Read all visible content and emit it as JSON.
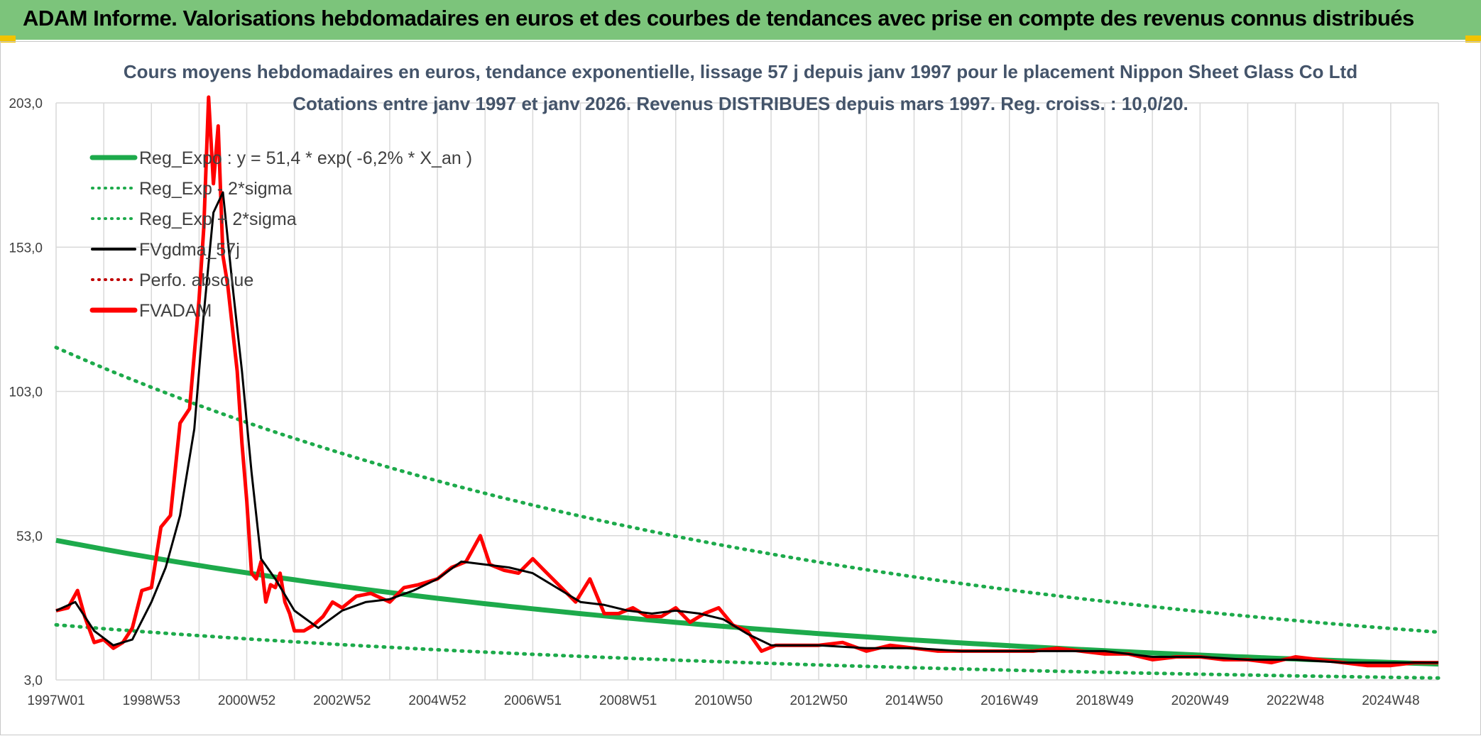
{
  "header": {
    "title": "ADAM Informe. Valorisations hebdomadaires en euros et des courbes de tendances avec prise en compte des revenus connus distribués"
  },
  "colors": {
    "banner": "#7cc47b",
    "reg": "#1daa4b",
    "gdma": "#000000",
    "adam": "#ff0000",
    "perfo": "#c00000",
    "grid": "#d9d9d9"
  },
  "chart_data": {
    "type": "line",
    "title": "Cours moyens hebdomadaires en euros, tendance exponentielle, lissage 57 j depuis janv 1997 pour le placement Nippon Sheet Glass Co Ltd",
    "subtitle": "Cotations entre janv 1997 et janv 2026. Revenus DISTRIBUES depuis mars 1997. Reg. croiss. : 10,0/20.",
    "xlabel": "",
    "ylabel": "",
    "xlim": [
      1997.0,
      2026.0
    ],
    "ylim": [
      3.0,
      203.0
    ],
    "y_ticks": [
      "3,0",
      "53,0",
      "103,0",
      "153,0",
      "203,0"
    ],
    "y_tick_values": [
      3,
      53,
      103,
      153,
      203
    ],
    "x_ticks": [
      "1997W01",
      "1998W53",
      "2000W52",
      "2002W52",
      "2004W52",
      "2006W51",
      "2008W51",
      "2010W50",
      "2012W50",
      "2014W50",
      "2016W49",
      "2018W49",
      "2020W49",
      "2022W48",
      "2024W48"
    ],
    "x_tick_values": [
      1997.0,
      1999.0,
      2001.0,
      2003.0,
      2005.0,
      2007.0,
      2009.0,
      2011.0,
      2013.0,
      2015.0,
      2017.0,
      2019.0,
      2021.0,
      2023.0,
      2025.0
    ],
    "legend": [
      {
        "name": "Reg_Expo : y = 51,4 * exp( -6,2% *  X_an )",
        "style": "solid-thick",
        "color": "#1daa4b"
      },
      {
        "name": "Reg_Exp - 2*sigma",
        "style": "dotted",
        "color": "#1daa4b"
      },
      {
        "name": "Reg_Exp + 2*sigma",
        "style": "dotted",
        "color": "#1daa4b"
      },
      {
        "name": "FVgdma_57j",
        "style": "solid",
        "color": "#000000"
      },
      {
        "name": "Perfo. absolue",
        "style": "dotted",
        "color": "#c00000"
      },
      {
        "name": "FVADAM",
        "style": "solid-thick",
        "color": "#ff0000"
      }
    ],
    "legend_position": "top-left",
    "regression": {
      "a": 51.4,
      "rate": -0.062,
      "lower_sigma_factor": 0.43,
      "upper_sigma_factor": 2.3
    },
    "series": [
      {
        "name": "FVADAM",
        "x": [
          1997.0,
          1997.25,
          1997.45,
          1997.6,
          1997.8,
          1998.0,
          1998.2,
          1998.4,
          1998.6,
          1998.8,
          1999.0,
          1999.2,
          1999.4,
          1999.6,
          1999.8,
          2000.0,
          2000.1,
          2000.2,
          2000.3,
          2000.4,
          2000.5,
          2000.6,
          2000.7,
          2000.8,
          2000.9,
          2001.0,
          2001.1,
          2001.2,
          2001.3,
          2001.4,
          2001.5,
          2001.6,
          2001.7,
          2001.8,
          2001.9,
          2002.0,
          2002.2,
          2002.4,
          2002.6,
          2002.8,
          2003.0,
          2003.3,
          2003.6,
          2004.0,
          2004.3,
          2004.6,
          2005.0,
          2005.3,
          2005.6,
          2005.9,
          2006.1,
          2006.4,
          2006.7,
          2007.0,
          2007.3,
          2007.6,
          2007.9,
          2008.2,
          2008.5,
          2008.8,
          2009.1,
          2009.4,
          2009.7,
          2010.0,
          2010.3,
          2010.6,
          2010.9,
          2011.2,
          2011.5,
          2011.8,
          2012.1,
          2012.5,
          2013.0,
          2013.5,
          2014.0,
          2014.5,
          2015.0,
          2015.5,
          2016.0,
          2016.5,
          2017.0,
          2017.5,
          2018.0,
          2018.5,
          2019.0,
          2019.5,
          2020.0,
          2020.5,
          2021.0,
          2021.5,
          2022.0,
          2022.5,
          2023.0,
          2023.5,
          2024.0,
          2024.5,
          2025.0,
          2025.5,
          2026.0
        ],
        "values": [
          27,
          28,
          34,
          25,
          16,
          17,
          14,
          16,
          21,
          34,
          35,
          56,
          60,
          92,
          97,
          135,
          160,
          205,
          175,
          195,
          150,
          140,
          125,
          110,
          85,
          65,
          40,
          38,
          44,
          30,
          36,
          35,
          40,
          30,
          26,
          20,
          20,
          22,
          25,
          30,
          28,
          32,
          33,
          30,
          35,
          36,
          38,
          42,
          44,
          53,
          43,
          41,
          40,
          45,
          40,
          35,
          30,
          38,
          26,
          26,
          28,
          25,
          25,
          28,
          23,
          26,
          28,
          22,
          20,
          13,
          15,
          15,
          15,
          16,
          13,
          15,
          14,
          13,
          13,
          13,
          13,
          13,
          14,
          13,
          12,
          12,
          10,
          11,
          11,
          10,
          10,
          9,
          11,
          10,
          9,
          8,
          8,
          9,
          9
        ]
      },
      {
        "name": "FVgdma_57j",
        "x": [
          1997.0,
          1997.4,
          1997.8,
          1998.2,
          1998.6,
          1999.0,
          1999.3,
          1999.6,
          1999.9,
          2000.1,
          2000.3,
          2000.5,
          2000.7,
          2000.9,
          2001.1,
          2001.3,
          2001.6,
          2002.0,
          2002.5,
          2003.0,
          2003.5,
          2004.0,
          2004.5,
          2005.0,
          2005.5,
          2006.0,
          2006.5,
          2007.0,
          2007.5,
          2008.0,
          2008.5,
          2009.0,
          2009.5,
          2010.0,
          2010.5,
          2011.0,
          2011.5,
          2012.0,
          2012.5,
          2013.0,
          2014.0,
          2015.0,
          2016.0,
          2017.0,
          2018.0,
          2019.0,
          2020.0,
          2021.0,
          2022.0,
          2023.0,
          2024.0,
          2025.0,
          2026.0
        ],
        "values": [
          27,
          30,
          20,
          15,
          17,
          30,
          42,
          60,
          90,
          130,
          165,
          172,
          140,
          110,
          75,
          45,
          38,
          27,
          21,
          27,
          30,
          31,
          34,
          38,
          44,
          43,
          42,
          40,
          35,
          30,
          29,
          27,
          26,
          27,
          26,
          24,
          19,
          15,
          15,
          15,
          14,
          14,
          13,
          13,
          13,
          13,
          11,
          11,
          10,
          10,
          9,
          9,
          9
        ]
      }
    ]
  }
}
